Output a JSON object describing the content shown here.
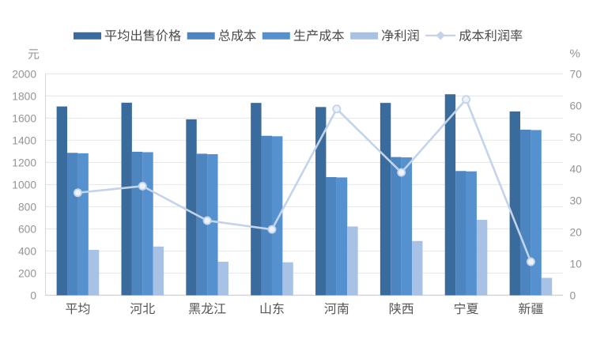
{
  "page": {
    "background": "#ffffff",
    "description": "Dual-axis column and line chart of crop price, cost and profit by region"
  },
  "chart_data": {
    "type": "bar",
    "subtype": "grouped-bars-with-line-dual-axis",
    "categories": [
      "平均",
      "河北",
      "黑龙江",
      "山东",
      "河南",
      "陕西",
      "宁夏",
      "新疆"
    ],
    "series": [
      {
        "name": "平均出售价格",
        "type": "bar",
        "axis": "left",
        "color": "#3a6b9d",
        "values": [
          1705,
          1739,
          1589,
          1737,
          1700,
          1737,
          1815,
          1660
        ]
      },
      {
        "name": "总成本",
        "type": "bar",
        "axis": "left",
        "color": "#4d85c1",
        "values": [
          1286,
          1296,
          1278,
          1440,
          1067,
          1248,
          1122,
          1495
        ]
      },
      {
        "name": "生产成本",
        "type": "bar",
        "axis": "left",
        "color": "#5591cf",
        "values": [
          1282,
          1292,
          1274,
          1436,
          1064,
          1245,
          1119,
          1492
        ]
      },
      {
        "name": "净利润",
        "type": "bar",
        "axis": "left",
        "color": "#a7c2e4",
        "values": [
          410,
          440,
          303,
          298,
          621,
          490,
          681,
          157
        ]
      },
      {
        "name": "成本利润率",
        "type": "line",
        "axis": "right",
        "color": "#c3d4ea",
        "marker": "circle",
        "values": [
          32.4,
          34.5,
          23.6,
          20.8,
          58.9,
          38.8,
          61.9,
          10.6
        ]
      }
    ],
    "left_axis": {
      "title": "元",
      "min": 0,
      "max": 2000,
      "step": 200,
      "tick_labels": [
        "0",
        "200",
        "400",
        "600",
        "800",
        "1000",
        "1200",
        "1400",
        "1600",
        "1800",
        "2000"
      ]
    },
    "right_axis": {
      "title": "%",
      "min": 0,
      "max": 70,
      "step": 10,
      "tick_labels": [
        "0",
        "10",
        "20",
        "30",
        "40",
        "50",
        "60",
        "70"
      ]
    },
    "grid": true,
    "legend_position": "top",
    "legend": [
      "平均出售价格",
      "总成本",
      "生产成本",
      "净利润",
      "成本利润率"
    ]
  },
  "colors": {
    "series1_bar": "#3a6b9d",
    "series2_bar": "#4d85c1",
    "series3_bar": "#5591cf",
    "series4_bar": "#a7c2e4",
    "line": "#c3d4ea",
    "marker_fill": "#eef3fa",
    "gridline": "#e4e4e4",
    "axis_line": "#d6d6d6",
    "tick_text": "#949494",
    "category_text": "#555555",
    "legend_text": "#4a4a4a",
    "background": "#ffffff"
  }
}
